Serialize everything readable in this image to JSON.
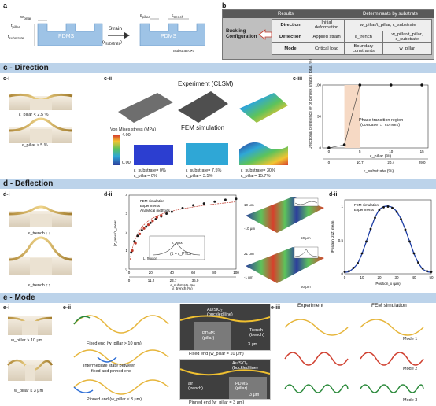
{
  "panel_a": {
    "letter": "a",
    "w_pillar": "w",
    "w_pillar_sub": "pillar",
    "t_pillar": "t",
    "t_pillar_sub": "pillar",
    "t_substrate": "t",
    "t_substrate_sub": "substrate",
    "pdms_left": "PDMS",
    "pdms_right": "PDMS",
    "strain": "Strain",
    "eps_substrate": "(ε",
    "eps_substrate_sub": "substrate",
    "eps_pillar": "ε",
    "eps_pillar_sub": "pillar",
    "eps_trench": "ε",
    "eps_trench_sub": "trench",
    "t_relation": "t",
    "t_relation_rest": "substrate≫t",
    "t_relation_sub": "pillar"
  },
  "panel_b": {
    "letter": "b",
    "header_results": "Results",
    "header_determinants": "Determinants by substrate",
    "buckling": "Buckling",
    "configuration": "Configuration",
    "rows": [
      {
        "result": "Direction",
        "det1": "Initial deformation",
        "det2": "w_pillar/t_pillar, ε_substrate"
      },
      {
        "result": "Deflection",
        "det1": "Applied strain",
        "det2": "ε_trench",
        "det3": "w_pillar/t_pillar, ε_substrate"
      },
      {
        "result": "Mode",
        "det1": "Critical load",
        "det2": "Boundary constraints",
        "det3": "w_pillar"
      }
    ]
  },
  "section_c": {
    "title": "c - Direction",
    "ci": "c-i",
    "cii": "c-ii",
    "ciii": "c-iii",
    "ci_label1": "ε_pillar < 2.5 %",
    "ci_label2": "ε_pillar ≥ 5 %",
    "experiment": "Experiment (CLSM)",
    "fem": "FEM simulation",
    "von_mises": "Von Mises stress (MPa)",
    "cb_max": "4.00",
    "cb_min": "0.00",
    "strain_labels": [
      {
        "sub": "ε_substrate= 0%",
        "pil": "ε_pillar= 0%"
      },
      {
        "sub": "ε_substrate= 7.5%",
        "pil": "ε_pillar= 3.5%"
      },
      {
        "sub": "ε_substrate= 30%",
        "pil": "ε_pillar= 15.7%"
      }
    ],
    "plot_ylabel": "Directional preference (# of convex shape / total, %)",
    "plot_xlabel1": "ε_pillar (%)",
    "plot_xlabel2": "ε_substrate (%)",
    "phase_text1": "Phase transition region",
    "phase_text2": "(concave ↔ convex)"
  },
  "chart_data": [
    {
      "type": "scatter",
      "name": "c-iii",
      "ylabel": "Directional preference (# of convex shape / total, %)",
      "xlabel": "ε_pillar (%)",
      "x": [
        0,
        2.5,
        5,
        10,
        15
      ],
      "values": [
        0,
        5,
        100,
        100,
        100
      ],
      "xticks": [
        "0",
        "5",
        "10",
        "15"
      ],
      "yticks": [
        "0",
        "50",
        "100"
      ],
      "x2ticks": [
        "0",
        "10.7",
        "20.4",
        "29.0"
      ],
      "ylim": [
        0,
        100
      ],
      "xlim": [
        -1,
        16
      ]
    },
    {
      "type": "scatter",
      "name": "d-ii",
      "xlabel": "ε_trench (%)",
      "x2label": "ε_substrate (%)",
      "ylabel": "|Z_max|/Z_mean",
      "xticks": [
        "0",
        "20",
        "40",
        "60",
        "80",
        "100"
      ],
      "x2ticks": [
        "0",
        "11.2",
        "23.7",
        "36.0"
      ],
      "yticks": [
        "0",
        "1",
        "2",
        "3",
        "4"
      ],
      "legend": [
        "FEM simulation",
        "Experiments",
        "Analytical methods"
      ],
      "xlim": [
        0,
        100
      ],
      "ylim": [
        0,
        4
      ],
      "fem_x": [
        2,
        5,
        8,
        12,
        16,
        20,
        25,
        30,
        35,
        40,
        50,
        60,
        70,
        80,
        90,
        100
      ],
      "fem_y": [
        0.9,
        1.5,
        1.8,
        2.1,
        2.3,
        2.5,
        2.7,
        2.85,
        3.0,
        3.1,
        3.3,
        3.45,
        3.55,
        3.65,
        3.75,
        3.8
      ],
      "exp_x": [
        3,
        6,
        10,
        14,
        18,
        22,
        26,
        30
      ],
      "exp_y": [
        1.0,
        1.4,
        1.9,
        2.2,
        2.4,
        2.6,
        2.8,
        2.9
      ]
    },
    {
      "type": "line",
      "name": "d-iii",
      "xlabel": "Position_x (μm)",
      "ylabel": "|Position_z|/Z_mean",
      "legend": [
        "FEM simulation",
        "Experiments"
      ],
      "xticks": [
        "0",
        "10",
        "20",
        "30",
        "40",
        "50"
      ],
      "yticks": [
        "0",
        "0.5",
        "1"
      ],
      "xlim": [
        0,
        50
      ],
      "ylim": [
        0,
        1.1
      ],
      "x": [
        0,
        2.5,
        5,
        7.5,
        10,
        12.5,
        15,
        17.5,
        20,
        22.5,
        25,
        27.5,
        30,
        32.5,
        35,
        37.5,
        40,
        42.5,
        45,
        47.5,
        50
      ],
      "values": [
        0.02,
        0.03,
        0.08,
        0.15,
        0.3,
        0.48,
        0.67,
        0.84,
        0.96,
        1.0,
        1.01,
        0.99,
        0.93,
        0.82,
        0.66,
        0.48,
        0.3,
        0.16,
        0.07,
        0.03,
        0.02
      ]
    }
  ],
  "section_d": {
    "title": "d - Deflection",
    "di": "d-i",
    "dii": "d-ii",
    "diii": "d-iii",
    "di_label1": "ε_trench ↓↓",
    "di_label2": "ε_trench ↑↑",
    "inset_formula": "(1 + ε_PTC)",
    "inset_lbl1": "L_fluxion",
    "inset_lbl2": "Z_max",
    "scale_top_max": "10 μm",
    "scale_top_min": "-10 μm",
    "scale_bot_max": "21 μm",
    "scale_bot_min": "-1 μm",
    "scale1": "50 μm",
    "scale2": "50 μm"
  },
  "section_e": {
    "title": "e - Mode",
    "ei": "e-i",
    "eii": "e-ii",
    "eiii": "e-iii",
    "ei_label1": "w_pillar > 10 μm",
    "ei_label2": "w_pillar ≤ 3 μm",
    "fixed_end": "Fixed end (w_pillar > 10 μm)",
    "intermediate1": "Intermediate state between",
    "intermediate2": "fixed and pinned end",
    "pinned_end": "Pinned end (w_pillar ≤ 3 μm)",
    "sem_top_label1": "Au/SiO₂",
    "sem_top_label2": "(buckled line)",
    "sem_top_pdms": "PDMS",
    "sem_top_pillar": "(pillar)",
    "sem_top_trench1": "Trench",
    "sem_top_trench2": "(trench)",
    "sem_top_scale": "3 μm",
    "sem_top_caption": "Fixed end (w_pillar = 10 μm)",
    "sem_bot_label1": "Au/SiO₂",
    "sem_bot_label2": "(buckled line)",
    "sem_bot_air": "air",
    "sem_bot_trench": "(trench)",
    "sem_bot_pdms": "PDMS",
    "sem_bot_pillar": "(pillar)",
    "sem_bot_scale": "3 μm",
    "sem_bot_caption": "Pinned end (w_pillar = 3 μm)",
    "experiment": "Experiment",
    "fem": "FEM simulation",
    "mode1": "Mode 1",
    "mode2": "Mode 2",
    "mode3": "Mode 3"
  },
  "colors": {
    "section_bar": "#bcd3ea",
    "pdms": "#9ec3e6",
    "accent_red": "#c0392b",
    "blue_line": "#1f3fa6"
  }
}
